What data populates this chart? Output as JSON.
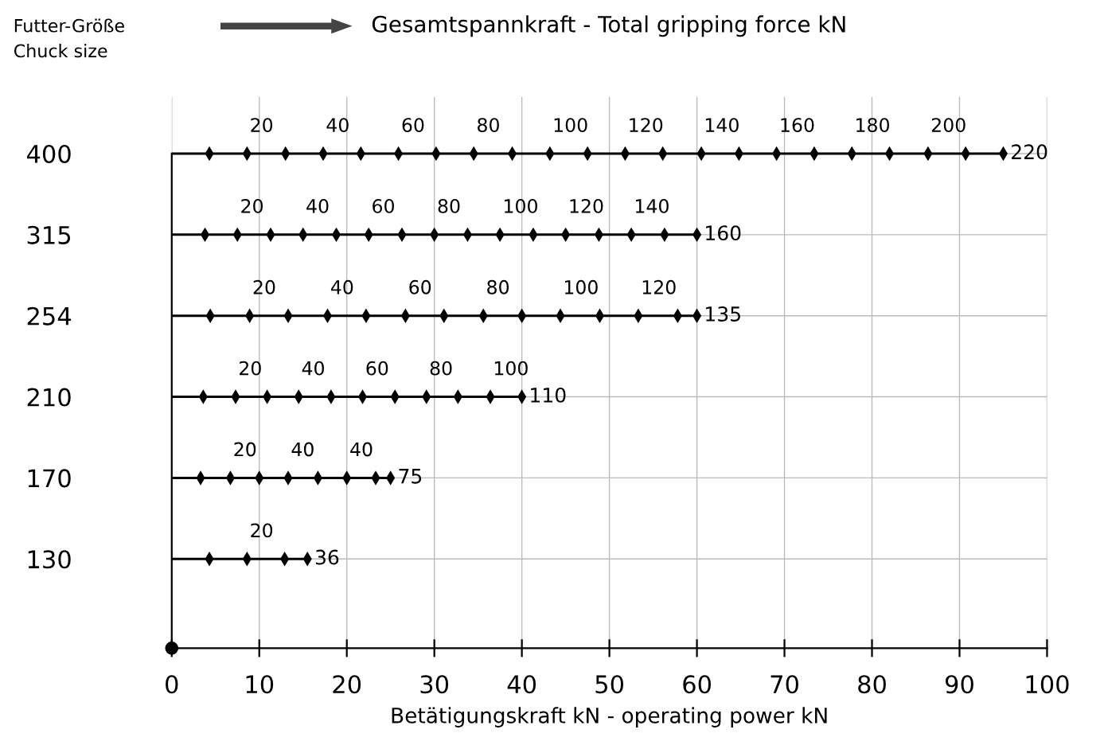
{
  "chart_data": {
    "type": "bar",
    "orientation": "horizontal",
    "title": "Gesamtspannkraft - Total gripping force kN",
    "ylabel": "Futter-Größe\nChuck size",
    "xlabel": "Betätigungskraft kN - operating power kN",
    "categories": [
      "400",
      "315",
      "254",
      "210",
      "170",
      "130"
    ],
    "values": [
      95,
      60,
      60,
      40,
      25,
      15.5
    ],
    "color": "#000000",
    "xlim": [
      0,
      100
    ],
    "xticks": [
      0,
      10,
      20,
      30,
      40,
      50,
      60,
      70,
      80,
      90,
      100
    ],
    "grid": true,
    "marker": "diamond",
    "series": [
      {
        "type": "scatter",
        "color": "#000000",
        "x": [
          "400",
          "400",
          "400",
          "400",
          "400",
          "400",
          "400",
          "400",
          "400",
          "400",
          "400",
          "400",
          "400",
          "400",
          "400",
          "400",
          "400",
          "400",
          "400",
          "400",
          "400",
          "400"
        ],
        "values": [
          4.3,
          8.6,
          13.0,
          17.3,
          21.6,
          25.9,
          30.2,
          34.5,
          38.9,
          43.2,
          47.5,
          51.8,
          56.1,
          60.5,
          64.8,
          69.1,
          73.4,
          77.7,
          82.0,
          86.4,
          90.7,
          95
        ]
      },
      {
        "type": "scatter",
        "color": "#000000",
        "x": [
          "315",
          "315",
          "315",
          "315",
          "315",
          "315",
          "315",
          "315",
          "315",
          "315",
          "315",
          "315",
          "315",
          "315",
          "315",
          "315"
        ],
        "values": [
          3.8,
          7.5,
          11.3,
          15,
          18.8,
          22.5,
          26.3,
          30,
          33.8,
          37.5,
          41.3,
          45,
          48.8,
          52.5,
          56.3,
          60
        ]
      },
      {
        "type": "scatter",
        "color": "#000000",
        "x": [
          "254",
          "254",
          "254",
          "254",
          "254",
          "254",
          "254",
          "254",
          "254",
          "254",
          "254",
          "254",
          "254",
          "254"
        ],
        "values": [
          4.4,
          8.9,
          13.3,
          17.8,
          22.2,
          26.7,
          31.1,
          35.6,
          40,
          44.4,
          48.9,
          53.3,
          57.8,
          60
        ]
      },
      {
        "type": "scatter",
        "color": "#000000",
        "x": [
          "210",
          "210",
          "210",
          "210",
          "210",
          "210",
          "210",
          "210",
          "210",
          "210",
          "210"
        ],
        "values": [
          3.6,
          7.3,
          10.9,
          14.5,
          18.2,
          21.8,
          25.5,
          29.1,
          32.7,
          36.4,
          40
        ]
      },
      {
        "type": "scatter",
        "color": "#000000",
        "x": [
          "170",
          "170",
          "170",
          "170",
          "170",
          "170",
          "170",
          "170"
        ],
        "values": [
          3.3,
          6.7,
          10,
          13.3,
          16.7,
          20,
          23.3,
          25
        ]
      },
      {
        "type": "scatter",
        "color": "#000000",
        "x": [
          "130",
          "130",
          "130",
          "130"
        ],
        "values": [
          4.3,
          8.6,
          12.9,
          15.5
        ]
      }
    ],
    "annotations": [
      {
        "text": "20",
        "x": 8.6,
        "y": "400"
      },
      {
        "text": "40",
        "x": 17.3,
        "y": "400"
      },
      {
        "text": "60",
        "x": 25.9,
        "y": "400"
      },
      {
        "text": "80",
        "x": 34.5,
        "y": "400"
      },
      {
        "text": "100",
        "x": 43.2,
        "y": "400"
      },
      {
        "text": "120",
        "x": 51.8,
        "y": "400"
      },
      {
        "text": "140",
        "x": 60.5,
        "y": "400"
      },
      {
        "text": "160",
        "x": 69.1,
        "y": "400"
      },
      {
        "text": "180",
        "x": 77.7,
        "y": "400"
      },
      {
        "text": "200",
        "x": 86.4,
        "y": "400"
      },
      {
        "text": "20",
        "x": 7.5,
        "y": "315"
      },
      {
        "text": "40",
        "x": 15,
        "y": "315"
      },
      {
        "text": "60",
        "x": 22.5,
        "y": "315"
      },
      {
        "text": "80",
        "x": 30,
        "y": "315"
      },
      {
        "text": "100",
        "x": 37.5,
        "y": "315"
      },
      {
        "text": "120",
        "x": 45,
        "y": "315"
      },
      {
        "text": "140",
        "x": 52.5,
        "y": "315"
      },
      {
        "text": "20",
        "x": 8.9,
        "y": "254"
      },
      {
        "text": "40",
        "x": 17.8,
        "y": "254"
      },
      {
        "text": "60",
        "x": 26.7,
        "y": "254"
      },
      {
        "text": "80",
        "x": 35.6,
        "y": "254"
      },
      {
        "text": "100",
        "x": 44.4,
        "y": "254"
      },
      {
        "text": "120",
        "x": 53.3,
        "y": "254"
      },
      {
        "text": "20",
        "x": 7.3,
        "y": "210"
      },
      {
        "text": "40",
        "x": 14.5,
        "y": "210"
      },
      {
        "text": "60",
        "x": 21.8,
        "y": "210"
      },
      {
        "text": "80",
        "x": 29.1,
        "y": "210"
      },
      {
        "text": "100",
        "x": 36.4,
        "y": "210"
      },
      {
        "text": "20",
        "x": 6.7,
        "y": "170"
      },
      {
        "text": "40",
        "x": 13.3,
        "y": "170"
      },
      {
        "text": "40",
        "x": 20,
        "y": "170"
      },
      {
        "text": "20",
        "x": 8.6,
        "y": "130"
      },
      {
        "text": "220",
        "x": 95,
        "y": "400"
      },
      {
        "text": "160",
        "x": 60,
        "y": "315"
      },
      {
        "text": "135",
        "x": 60,
        "y": "254"
      },
      {
        "text": "110",
        "x": 40,
        "y": "210"
      },
      {
        "text": "75",
        "x": 25,
        "y": "170"
      },
      {
        "text": "36",
        "x": 15.5,
        "y": "130"
      }
    ]
  }
}
